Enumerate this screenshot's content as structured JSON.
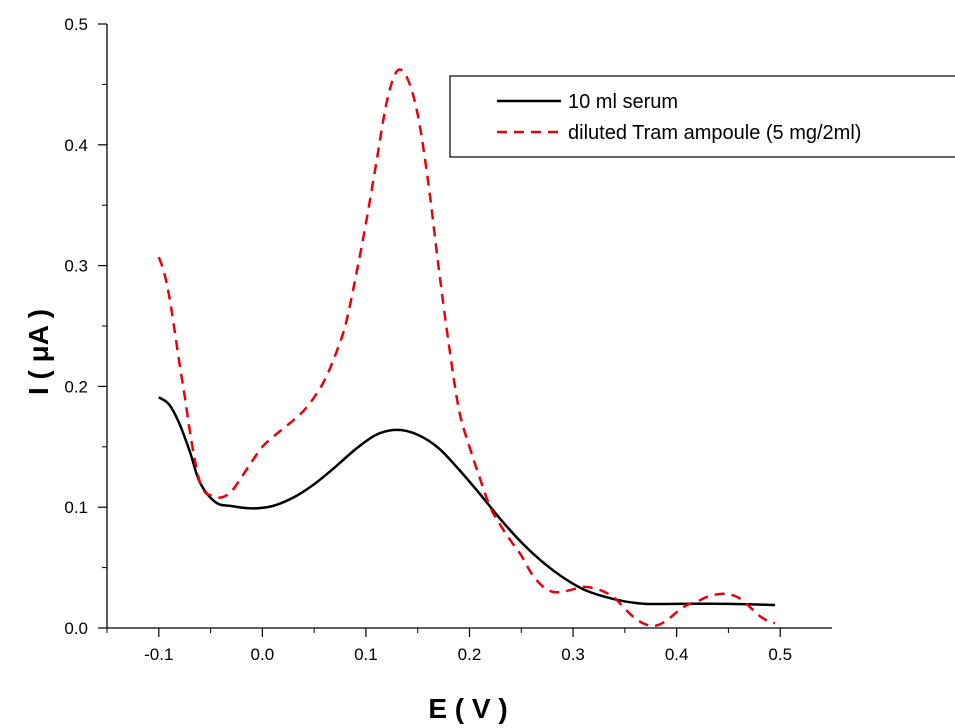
{
  "chart_data": {
    "type": "line",
    "xlabel": "E ( V )",
    "ylabel": "I ( μA )",
    "xlim": [
      -0.15,
      0.55
    ],
    "ylim": [
      0.0,
      0.5
    ],
    "x_ticks": [
      -0.1,
      0.0,
      0.1,
      0.2,
      0.3,
      0.4,
      0.5
    ],
    "x_tick_labels": [
      "-0.1",
      "0.0",
      "0.1",
      "0.2",
      "0.3",
      "0.4",
      "0.5"
    ],
    "y_ticks": [
      0.0,
      0.1,
      0.2,
      0.3,
      0.4,
      0.5
    ],
    "y_tick_labels": [
      "0.0",
      "0.1",
      "0.2",
      "0.3",
      "0.4",
      "0.5"
    ],
    "grid": false,
    "legend_position": "top-right",
    "series": [
      {
        "name": "10 ml serum",
        "color": "#000000",
        "dash": "solid",
        "x": [
          -0.1,
          -0.09,
          -0.08,
          -0.07,
          -0.06,
          -0.045,
          -0.03,
          -0.01,
          0.01,
          0.03,
          0.05,
          0.07,
          0.09,
          0.11,
          0.13,
          0.15,
          0.17,
          0.19,
          0.21,
          0.23,
          0.25,
          0.27,
          0.29,
          0.31,
          0.33,
          0.35,
          0.37,
          0.4,
          0.45,
          0.495
        ],
        "y": [
          0.191,
          0.185,
          0.169,
          0.146,
          0.12,
          0.104,
          0.101,
          0.099,
          0.101,
          0.108,
          0.119,
          0.133,
          0.148,
          0.16,
          0.164,
          0.16,
          0.149,
          0.131,
          0.111,
          0.09,
          0.071,
          0.055,
          0.042,
          0.032,
          0.026,
          0.022,
          0.02,
          0.02,
          0.02,
          0.019
        ]
      },
      {
        "name": "diluted Tram ampoule (5 mg/2ml)",
        "color": "#e8000b",
        "dash": "dashed",
        "x": [
          -0.1,
          -0.095,
          -0.09,
          -0.085,
          -0.08,
          -0.075,
          -0.07,
          -0.065,
          -0.06,
          -0.055,
          -0.05,
          -0.04,
          -0.03,
          -0.02,
          -0.01,
          0.0,
          0.01,
          0.02,
          0.03,
          0.04,
          0.05,
          0.06,
          0.07,
          0.08,
          0.09,
          0.1,
          0.11,
          0.12,
          0.13,
          0.14,
          0.15,
          0.16,
          0.17,
          0.18,
          0.19,
          0.2,
          0.21,
          0.22,
          0.23,
          0.24,
          0.25,
          0.26,
          0.27,
          0.28,
          0.29,
          0.3,
          0.31,
          0.32,
          0.33,
          0.34,
          0.35,
          0.36,
          0.37,
          0.38,
          0.39,
          0.4,
          0.41,
          0.42,
          0.43,
          0.44,
          0.45,
          0.46,
          0.47,
          0.48,
          0.49,
          0.495
        ],
        "y": [
          0.307,
          0.295,
          0.275,
          0.248,
          0.219,
          0.192,
          0.163,
          0.138,
          0.12,
          0.112,
          0.11,
          0.108,
          0.113,
          0.125,
          0.138,
          0.15,
          0.158,
          0.165,
          0.172,
          0.18,
          0.191,
          0.205,
          0.225,
          0.25,
          0.29,
          0.335,
          0.385,
          0.435,
          0.461,
          0.455,
          0.425,
          0.37,
          0.3,
          0.235,
          0.18,
          0.15,
          0.124,
          0.1,
          0.085,
          0.072,
          0.06,
          0.045,
          0.035,
          0.03,
          0.03,
          0.032,
          0.034,
          0.033,
          0.03,
          0.025,
          0.016,
          0.008,
          0.003,
          0.002,
          0.006,
          0.013,
          0.019,
          0.022,
          0.026,
          0.028,
          0.028,
          0.025,
          0.018,
          0.01,
          0.005,
          0.004
        ]
      }
    ]
  }
}
